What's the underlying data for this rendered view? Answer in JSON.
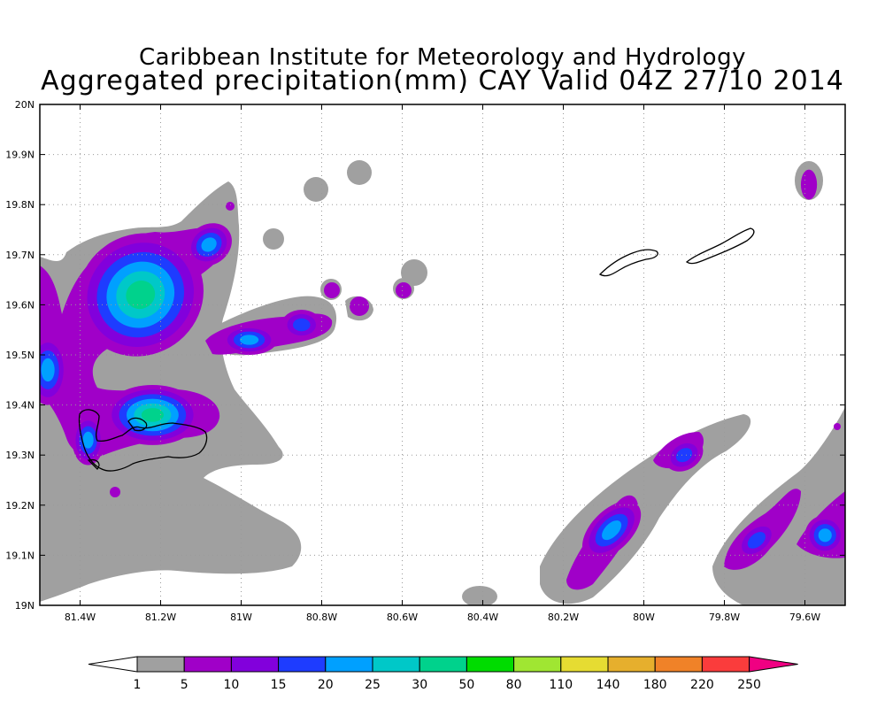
{
  "title": {
    "line1": "Caribbean Institute for Meteorology and Hydrology",
    "line2": "Aggregated precipitation(mm) CAY Valid 04Z 27/10 2014"
  },
  "map": {
    "lon_range": [
      -81.5,
      -79.5
    ],
    "lat_range": [
      19.0,
      20.0
    ],
    "lon_ticks": [
      {
        "value": -81.4,
        "label": "81.4W"
      },
      {
        "value": -81.2,
        "label": "81.2W"
      },
      {
        "value": -81.0,
        "label": "81W"
      },
      {
        "value": -80.8,
        "label": "80.8W"
      },
      {
        "value": -80.6,
        "label": "80.6W"
      },
      {
        "value": -80.4,
        "label": "80.4W"
      },
      {
        "value": -80.2,
        "label": "80.2W"
      },
      {
        "value": -80.0,
        "label": "80W"
      },
      {
        "value": -79.8,
        "label": "79.8W"
      },
      {
        "value": -79.6,
        "label": "79.6W"
      }
    ],
    "lat_ticks": [
      {
        "value": 19.0,
        "label": "19N"
      },
      {
        "value": 19.1,
        "label": "19.1N"
      },
      {
        "value": 19.2,
        "label": "19.2N"
      },
      {
        "value": 19.3,
        "label": "19.3N"
      },
      {
        "value": 19.4,
        "label": "19.4N"
      },
      {
        "value": 19.5,
        "label": "19.5N"
      },
      {
        "value": 19.6,
        "label": "19.6N"
      },
      {
        "value": 19.7,
        "label": "19.7N"
      },
      {
        "value": 19.8,
        "label": "19.8N"
      },
      {
        "value": 19.9,
        "label": "19.9N"
      },
      {
        "value": 20.0,
        "label": "20N"
      }
    ],
    "grid": true
  },
  "colorbar": {
    "levels": [
      "1",
      "5",
      "10",
      "15",
      "20",
      "25",
      "30",
      "50",
      "80",
      "110",
      "140",
      "180",
      "220",
      "250"
    ],
    "colors": [
      "#a0a0a0",
      "#a000c8",
      "#8200dc",
      "#1e3cff",
      "#00a0ff",
      "#00c8c8",
      "#00d28c",
      "#00dc00",
      "#a0e632",
      "#e6dc32",
      "#e6af2d",
      "#f08228",
      "#fa3c3c",
      "#f00082"
    ],
    "under_color": "#ffffff"
  },
  "precip_blobs": [
    {
      "lon": -81.25,
      "lat": 19.62,
      "rx_deg": 0.16,
      "ry_deg": 0.12,
      "rot": -35,
      "level": 6
    },
    {
      "lon": -81.08,
      "lat": 19.72,
      "rx_deg": 0.06,
      "ry_deg": 0.04,
      "rot": -35,
      "level": 4
    },
    {
      "lon": -81.48,
      "lat": 19.47,
      "rx_deg": 0.05,
      "ry_deg": 0.07,
      "rot": 0,
      "level": 4
    },
    {
      "lon": -81.22,
      "lat": 19.38,
      "rx_deg": 0.12,
      "ry_deg": 0.06,
      "rot": 0,
      "level": 6
    },
    {
      "lon": -81.38,
      "lat": 19.33,
      "rx_deg": 0.04,
      "ry_deg": 0.05,
      "rot": 0,
      "level": 4
    },
    {
      "lon": -80.98,
      "lat": 19.53,
      "rx_deg": 0.07,
      "ry_deg": 0.03,
      "rot": 0,
      "level": 4
    },
    {
      "lon": -80.85,
      "lat": 19.56,
      "rx_deg": 0.05,
      "ry_deg": 0.03,
      "rot": 0,
      "level": 3
    },
    {
      "lon": -80.08,
      "lat": 19.15,
      "rx_deg": 0.09,
      "ry_deg": 0.04,
      "rot": -45,
      "level": 4
    },
    {
      "lon": -79.9,
      "lat": 19.3,
      "rx_deg": 0.05,
      "ry_deg": 0.03,
      "rot": -30,
      "level": 3
    },
    {
      "lon": -79.72,
      "lat": 19.13,
      "rx_deg": 0.06,
      "ry_deg": 0.03,
      "rot": -40,
      "level": 3
    },
    {
      "lon": -79.55,
      "lat": 19.14,
      "rx_deg": 0.05,
      "ry_deg": 0.04,
      "rot": -45,
      "level": 4
    },
    {
      "lon": -79.59,
      "lat": 19.84,
      "rx_deg": 0.02,
      "ry_deg": 0.03,
      "rot": 0,
      "level": 1
    }
  ]
}
